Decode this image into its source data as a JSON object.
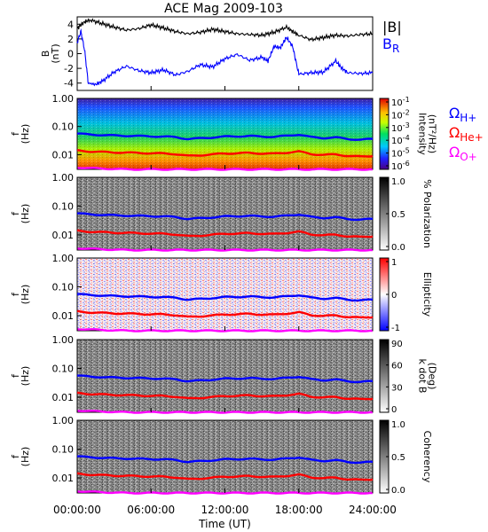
{
  "chart_data": {
    "type": "spectrogram-stack",
    "title": "ACE Mag 2009-103",
    "xlabel": "Time (UT)",
    "x_ticks": [
      "00:00:00",
      "06:00:00",
      "12:00:00",
      "18:00:00",
      "24:00:00"
    ],
    "xlim_hours": [
      0,
      24
    ],
    "freq_ticks": [
      "1.00",
      "0.10",
      "0.01"
    ],
    "freq_range_hz": [
      0.003,
      1.0
    ],
    "freq_scale": "log",
    "frequency_lines": [
      {
        "key": "H",
        "name_main": "Ω",
        "name_sub": "H+",
        "color": "#0000ff",
        "points": [
          [
            0,
            0.056
          ],
          [
            1,
            0.052
          ],
          [
            2,
            0.05
          ],
          [
            3,
            0.048
          ],
          [
            4,
            0.047
          ],
          [
            5,
            0.046
          ],
          [
            6,
            0.045
          ],
          [
            7,
            0.044
          ],
          [
            8,
            0.042
          ],
          [
            9,
            0.036
          ],
          [
            10,
            0.038
          ],
          [
            11,
            0.041
          ],
          [
            12,
            0.044
          ],
          [
            13,
            0.045
          ],
          [
            14,
            0.046
          ],
          [
            15,
            0.044
          ],
          [
            16,
            0.043
          ],
          [
            17,
            0.047
          ],
          [
            18,
            0.052
          ],
          [
            19,
            0.042
          ],
          [
            20,
            0.039
          ],
          [
            21,
            0.041
          ],
          [
            22,
            0.036
          ],
          [
            23,
            0.034
          ],
          [
            24,
            0.036
          ]
        ]
      },
      {
        "key": "He",
        "name_main": "Ω",
        "name_sub": "He+",
        "color": "#ff0000",
        "points": [
          [
            0,
            0.014
          ],
          [
            1,
            0.013
          ],
          [
            2,
            0.0125
          ],
          [
            3,
            0.012
          ],
          [
            4,
            0.0118
          ],
          [
            5,
            0.0115
          ],
          [
            6,
            0.0112
          ],
          [
            7,
            0.011
          ],
          [
            8,
            0.0105
          ],
          [
            9,
            0.009
          ],
          [
            10,
            0.0095
          ],
          [
            11,
            0.0102
          ],
          [
            12,
            0.011
          ],
          [
            13,
            0.0112
          ],
          [
            14,
            0.0115
          ],
          [
            15,
            0.011
          ],
          [
            16,
            0.0108
          ],
          [
            17,
            0.0118
          ],
          [
            18,
            0.013
          ],
          [
            19,
            0.0105
          ],
          [
            20,
            0.0098
          ],
          [
            21,
            0.0102
          ],
          [
            22,
            0.009
          ],
          [
            23,
            0.0085
          ],
          [
            24,
            0.009
          ]
        ]
      },
      {
        "key": "O",
        "name_main": "Ω",
        "name_sub": "O+",
        "color": "#ff00ff",
        "points": [
          [
            0,
            0.0035
          ],
          [
            1,
            0.0033
          ],
          [
            2,
            0.0032
          ],
          [
            3,
            0.0031
          ],
          [
            4,
            0.003
          ],
          [
            5,
            0.003
          ],
          [
            6,
            0.003
          ],
          [
            7,
            0.003
          ],
          [
            8,
            0.003
          ],
          [
            9,
            0.003
          ],
          [
            10,
            0.003
          ],
          [
            11,
            0.003
          ],
          [
            12,
            0.003
          ],
          [
            13,
            0.003
          ],
          [
            14,
            0.003
          ],
          [
            15,
            0.003
          ],
          [
            16,
            0.003
          ],
          [
            17,
            0.003
          ],
          [
            18,
            0.003
          ],
          [
            19,
            0.003
          ],
          [
            20,
            0.003
          ],
          [
            21,
            0.003
          ],
          [
            22,
            0.003
          ],
          [
            23,
            0.003
          ],
          [
            24,
            0.003
          ]
        ]
      }
    ],
    "field_panel": {
      "ylabel_main": "B",
      "ylabel_unit": "(nT)",
      "ylim": [
        -5,
        5
      ],
      "y_ticks": [
        "4",
        "2",
        "0",
        "-2",
        "-4"
      ],
      "series": [
        {
          "key": "Bmag",
          "name": "|B|",
          "color": "#000000",
          "points": [
            [
              0,
              3.4
            ],
            [
              0.5,
              4.2
            ],
            [
              1,
              4.6
            ],
            [
              2,
              4.1
            ],
            [
              3,
              3.6
            ],
            [
              4,
              3.2
            ],
            [
              5,
              3.4
            ],
            [
              6,
              3.9
            ],
            [
              7,
              3.5
            ],
            [
              8,
              3.0
            ],
            [
              9,
              2.7
            ],
            [
              10,
              2.9
            ],
            [
              11,
              3.3
            ],
            [
              12,
              3.0
            ],
            [
              13,
              2.7
            ],
            [
              14,
              2.6
            ],
            [
              15,
              2.5
            ],
            [
              16,
              2.9
            ],
            [
              17,
              3.6
            ],
            [
              17.5,
              3.0
            ],
            [
              18,
              2.5
            ],
            [
              19,
              1.9
            ],
            [
              20,
              2.2
            ],
            [
              21,
              2.5
            ],
            [
              22,
              2.4
            ],
            [
              23,
              2.6
            ],
            [
              24,
              2.7
            ]
          ]
        },
        {
          "key": "BR",
          "name_main": "B",
          "name_sub": "R",
          "color": "#0000ff",
          "points": [
            [
              0,
              1.5
            ],
            [
              0.3,
              3.0
            ],
            [
              0.6,
              0.5
            ],
            [
              0.9,
              -4.0
            ],
            [
              1.5,
              -4.2
            ],
            [
              2,
              -3.8
            ],
            [
              3,
              -2.5
            ],
            [
              4,
              -1.7
            ],
            [
              5,
              -2.3
            ],
            [
              6,
              -2.6
            ],
            [
              7,
              -2.2
            ],
            [
              8,
              -2.9
            ],
            [
              9,
              -2.4
            ],
            [
              10,
              -1.5
            ],
            [
              11,
              -1.8
            ],
            [
              12,
              -0.7
            ],
            [
              13,
              -0.1
            ],
            [
              14,
              -0.9
            ],
            [
              15,
              -0.5
            ],
            [
              15.5,
              -1.0
            ],
            [
              16,
              1.0
            ],
            [
              16.5,
              0.8
            ],
            [
              17,
              2.2
            ],
            [
              17.5,
              1.0
            ],
            [
              18,
              -2.8
            ],
            [
              19,
              -2.6
            ],
            [
              20,
              -2.5
            ],
            [
              21,
              -1.0
            ],
            [
              21.5,
              -2.0
            ],
            [
              22,
              -2.6
            ],
            [
              23,
              -2.7
            ],
            [
              24,
              -2.6
            ]
          ]
        }
      ]
    },
    "spectrogram_panels": [
      {
        "key": "intensity",
        "ylabel_main": "f",
        "ylabel_unit": "(Hz)",
        "colorbar_label_lines": [
          "Intensity",
          "(nT²/Hz)"
        ],
        "colorbar_scale": "rainbow",
        "colorbar_ticks": [
          {
            "base": "10",
            "exp": "-1"
          },
          {
            "base": "10",
            "exp": "-2"
          },
          {
            "base": "10",
            "exp": "-3"
          },
          {
            "base": "10",
            "exp": "-4"
          },
          {
            "base": "10",
            "exp": "-5"
          },
          {
            "base": "10",
            "exp": "-6"
          }
        ]
      },
      {
        "key": "polarization",
        "ylabel_main": "f",
        "ylabel_unit": "(Hz)",
        "colorbar_label_lines": [
          "% Polarization"
        ],
        "colorbar_scale": "gray-reversed",
        "colorbar_ticks": [
          "1.0",
          "0.5",
          "0.0"
        ]
      },
      {
        "key": "ellipticity",
        "ylabel_main": "f",
        "ylabel_unit": "(Hz)",
        "colorbar_label_lines": [
          "Ellipticity"
        ],
        "colorbar_scale": "red-white-blue",
        "colorbar_ticks": [
          "1",
          "0",
          "-1"
        ]
      },
      {
        "key": "kdotb",
        "ylabel_main": "f",
        "ylabel_unit": "(Hz)",
        "colorbar_label_lines": [
          "k dot B",
          "(Deg)"
        ],
        "colorbar_scale": "gray-reversed",
        "colorbar_ticks": [
          "90",
          "60",
          "30",
          "0"
        ]
      },
      {
        "key": "coherency",
        "ylabel_main": "f",
        "ylabel_unit": "(Hz)",
        "colorbar_label_lines": [
          "Coherency"
        ],
        "colorbar_scale": "gray-reversed",
        "colorbar_ticks": [
          "1.0",
          "0.5",
          "0.0"
        ]
      }
    ]
  }
}
